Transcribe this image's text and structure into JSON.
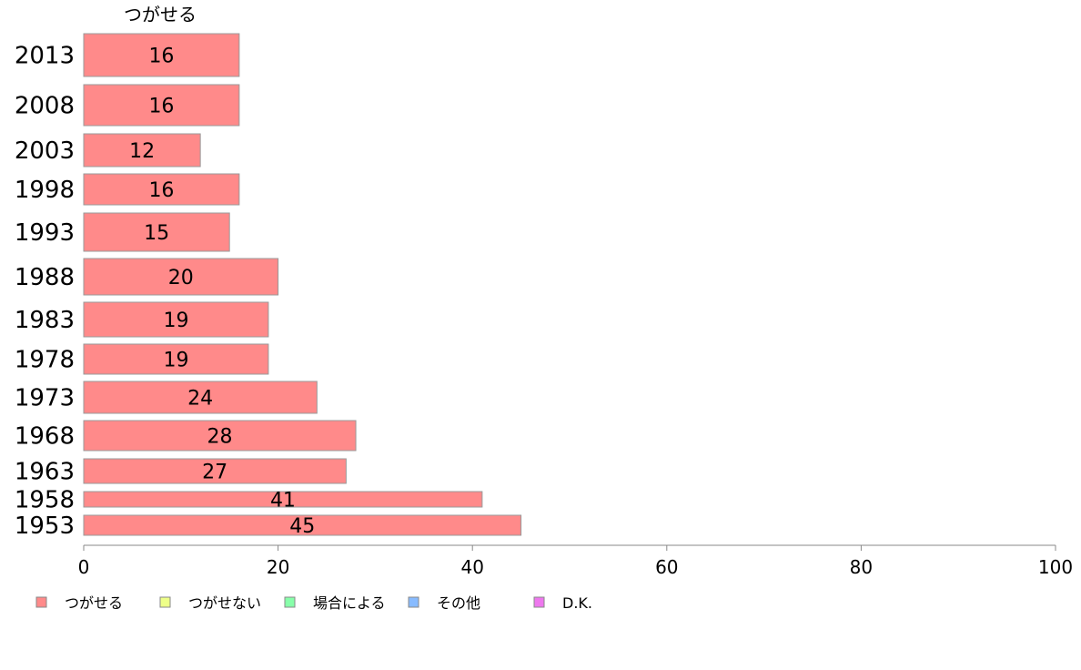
{
  "chart_data": {
    "type": "bar",
    "orientation": "horizontal",
    "categories": [
      "2013",
      "2008",
      "2003",
      "1998",
      "1993",
      "1988",
      "1983",
      "1978",
      "1973",
      "1968",
      "1963",
      "1958",
      "1953"
    ],
    "series": [
      {
        "name": "つがせる",
        "values": [
          16,
          16,
          12,
          16,
          15,
          20,
          19,
          19,
          24,
          28,
          27,
          41,
          45
        ],
        "color": "#ff8a8a"
      }
    ],
    "series_header": "つがせる",
    "xlim": [
      0,
      100
    ],
    "xticks": [
      0,
      20,
      40,
      60,
      80,
      100
    ],
    "legend_position": "bottom",
    "legend": [
      {
        "label": "つがせる",
        "color": "#ff8a8a"
      },
      {
        "label": "つがせない",
        "color": "#eeff88"
      },
      {
        "label": "場合による",
        "color": "#88ffaa"
      },
      {
        "label": "その他",
        "color": "#88bbff"
      },
      {
        "label": "D.K.",
        "color": "#ee77ee"
      }
    ]
  }
}
